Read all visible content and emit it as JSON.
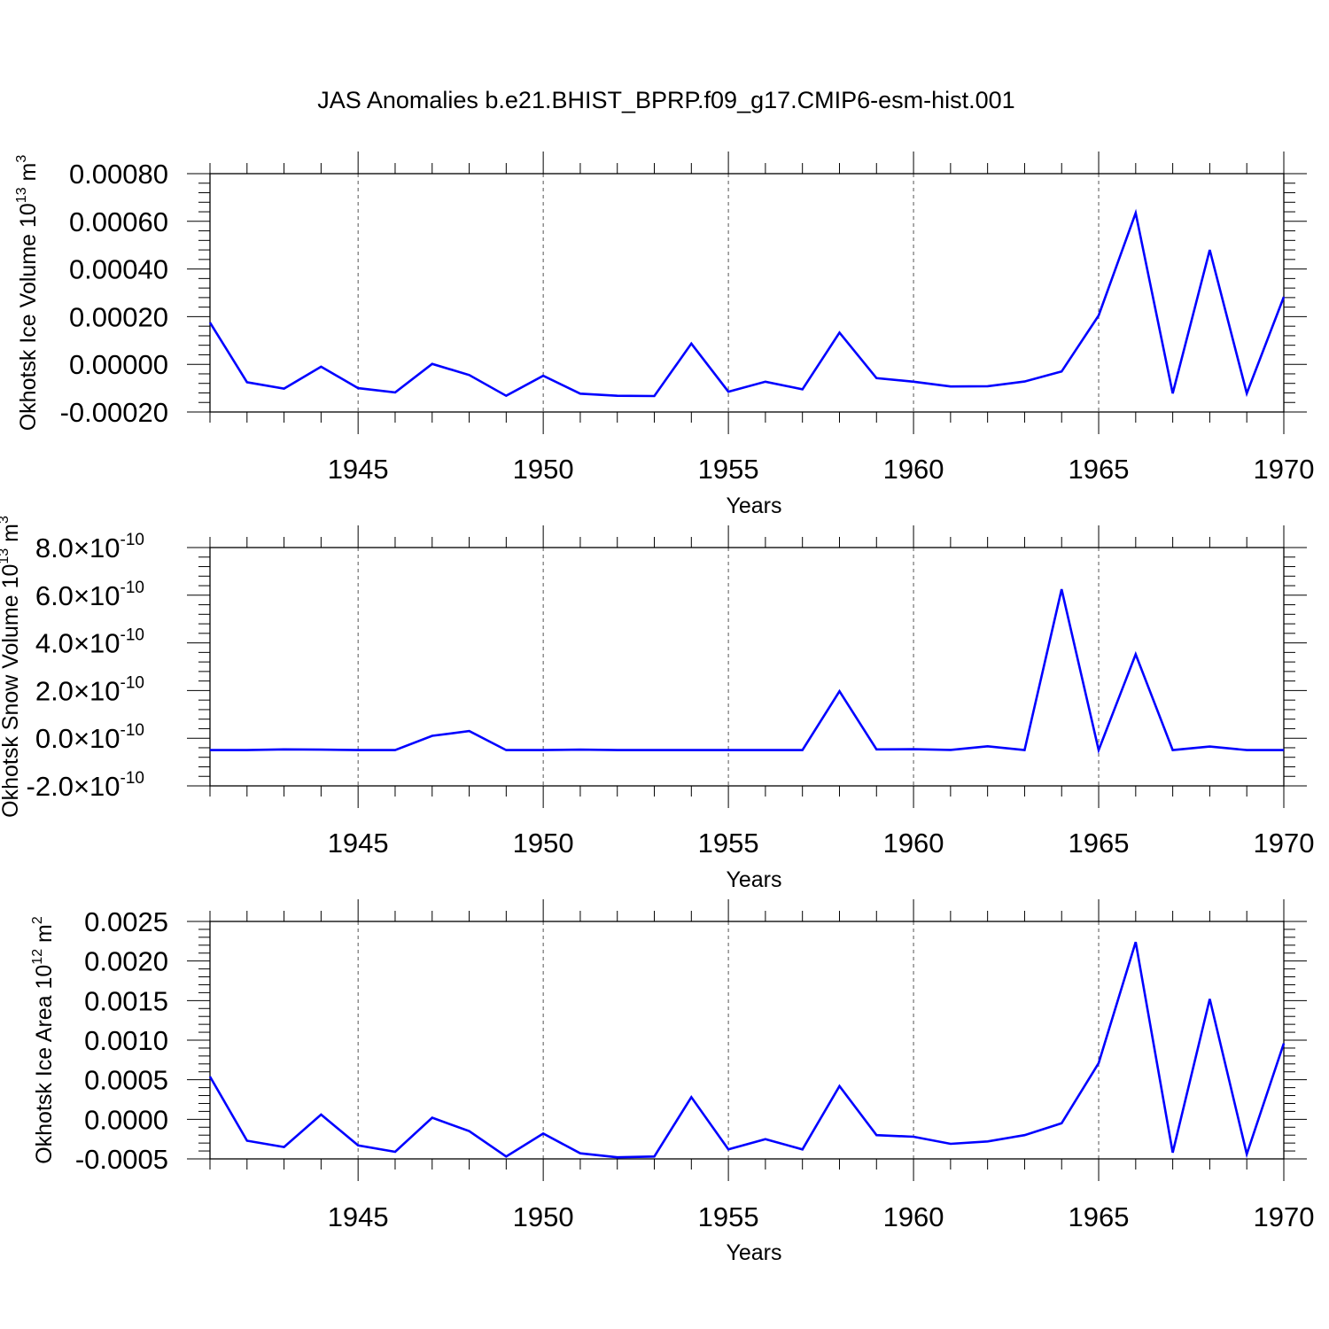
{
  "title": "JAS Anomalies b.e21.BHIST_BPRP.f09_g17.CMIP6-esm-hist.001",
  "colors": {
    "line": "#0000ff",
    "axis": "#000000",
    "grid": "#555555"
  },
  "chart_data": [
    {
      "type": "line",
      "xlabel": "Years",
      "ylabel_main": "Okhotsk Ice Volume 10",
      "ylabel_exp1": "13",
      "ylabel_unit": " m",
      "ylabel_exp2": "3",
      "xlim": [
        1941,
        1970
      ],
      "ylim": [
        -0.0002,
        0.0008
      ],
      "xticks": [
        "1945",
        "1950",
        "1955",
        "1960",
        "1965",
        "1970"
      ],
      "xtick_values": [
        1945,
        1950,
        1955,
        1960,
        1965,
        1970
      ],
      "yticks": [
        "-0.00020",
        "0.00000",
        "0.00020",
        "0.00040",
        "0.00060",
        "0.00080"
      ],
      "ytick_values": [
        -0.0002,
        0,
        0.0002,
        0.0004,
        0.0006,
        0.0008
      ],
      "series": [
        {
          "name": "Okhotsk Ice Volume",
          "x": [
            1941,
            1942,
            1943,
            1944,
            1945,
            1946,
            1947,
            1948,
            1949,
            1950,
            1951,
            1952,
            1953,
            1954,
            1955,
            1956,
            1957,
            1958,
            1959,
            1960,
            1961,
            1962,
            1963,
            1964,
            1965,
            1966,
            1967,
            1968,
            1969,
            1970
          ],
          "values": [
            0.000175,
            -7.5e-05,
            -0.000102,
            -1e-05,
            -0.0001,
            -0.000118,
            2e-06,
            -4.5e-05,
            -0.000132,
            -4.8e-05,
            -0.000123,
            -0.000132,
            -0.000133,
            8.7e-05,
            -0.000115,
            -7.3e-05,
            -0.000105,
            0.000133,
            -5.8e-05,
            -7.3e-05,
            -9.3e-05,
            -9.2e-05,
            -7.2e-05,
            -3e-05,
            0.000205,
            0.000635,
            -0.000122,
            0.00048,
            -0.000122,
            0.000283
          ]
        }
      ]
    },
    {
      "type": "line",
      "xlabel": "Years",
      "ylabel_main": "Okhotsk Snow Volume 10",
      "ylabel_exp1": "13",
      "ylabel_unit": " m",
      "ylabel_exp2": "3",
      "xlim": [
        1941,
        1970
      ],
      "ylim": [
        -2e-10,
        8e-10
      ],
      "xticks": [
        "1945",
        "1950",
        "1955",
        "1960",
        "1965",
        "1970"
      ],
      "xtick_values": [
        1945,
        1950,
        1955,
        1960,
        1965,
        1970
      ],
      "yticks": [
        "-2.0",
        "0.0",
        "2.0",
        "4.0",
        "6.0",
        "8.0"
      ],
      "ytick_suffix": "×10",
      "ytick_exp": "-10",
      "ytick_values": [
        -2e-10,
        0,
        2e-10,
        4e-10,
        6e-10,
        8e-10
      ],
      "series": [
        {
          "name": "Okhotsk Snow Volume",
          "x": [
            1941,
            1942,
            1943,
            1944,
            1945,
            1946,
            1947,
            1948,
            1949,
            1950,
            1951,
            1952,
            1953,
            1954,
            1955,
            1956,
            1957,
            1958,
            1959,
            1960,
            1961,
            1962,
            1963,
            1964,
            1965,
            1966,
            1967,
            1968,
            1969,
            1970
          ],
          "values": [
            -5e-11,
            -5e-11,
            -4.7e-11,
            -4.8e-11,
            -5e-11,
            -5e-11,
            1e-11,
            3e-11,
            -5e-11,
            -5e-11,
            -4.8e-11,
            -5e-11,
            -5e-11,
            -5e-11,
            -5e-11,
            -5e-11,
            -5e-11,
            1.97e-10,
            -4.7e-11,
            -4.6e-11,
            -4.9e-11,
            -3.4e-11,
            -5e-11,
            6.25e-10,
            -5e-11,
            3.52e-10,
            -5e-11,
            -3.5e-11,
            -5e-11,
            -5e-11
          ]
        }
      ]
    },
    {
      "type": "line",
      "xlabel": "Years",
      "ylabel_main": "Okhotsk Ice Area 10",
      "ylabel_exp1": "12",
      "ylabel_unit": " m",
      "ylabel_exp2": "2",
      "xlim": [
        1941,
        1970
      ],
      "ylim": [
        -0.0005,
        0.0025
      ],
      "xticks": [
        "1945",
        "1950",
        "1955",
        "1960",
        "1965",
        "1970"
      ],
      "xtick_values": [
        1945,
        1950,
        1955,
        1960,
        1965,
        1970
      ],
      "yticks": [
        "-0.0005",
        "0.0000",
        "0.0005",
        "0.0010",
        "0.0015",
        "0.0020",
        "0.0025"
      ],
      "ytick_values": [
        -0.0005,
        0,
        0.0005,
        0.001,
        0.0015,
        0.002,
        0.0025
      ],
      "series": [
        {
          "name": "Okhotsk Ice Area",
          "x": [
            1941,
            1942,
            1943,
            1944,
            1945,
            1946,
            1947,
            1948,
            1949,
            1950,
            1951,
            1952,
            1953,
            1954,
            1955,
            1956,
            1957,
            1958,
            1959,
            1960,
            1961,
            1962,
            1963,
            1964,
            1965,
            1966,
            1967,
            1968,
            1969,
            1970
          ],
          "values": [
            0.00054,
            -0.00027,
            -0.00035,
            6e-05,
            -0.00033,
            -0.00041,
            2e-05,
            -0.00015,
            -0.00047,
            -0.00018,
            -0.00043,
            -0.00048,
            -0.00047,
            0.00028,
            -0.00038,
            -0.00025,
            -0.00038,
            0.00042,
            -0.0002,
            -0.00022,
            -0.00031,
            -0.00028,
            -0.0002,
            -5e-05,
            0.00071,
            0.00224,
            -0.00042,
            0.00152,
            -0.00044,
            0.00096
          ]
        }
      ]
    }
  ]
}
